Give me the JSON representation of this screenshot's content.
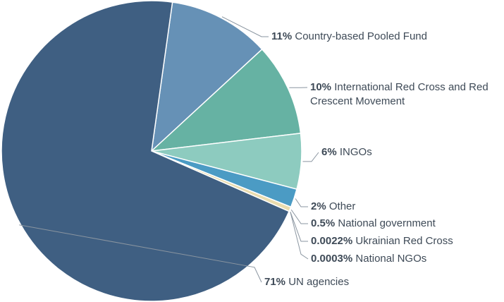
{
  "chart_data": {
    "type": "pie",
    "categories": [
      "Country-based Pooled Fund",
      "International Red Cross and Red Crescent Movement",
      "INGOs",
      "Other",
      "National government",
      "Ukrainian Red Cross",
      "National NGOs",
      "UN agencies"
    ],
    "values": [
      11,
      10,
      6,
      2,
      0.5,
      0.0022,
      0.0003,
      71
    ],
    "value_labels": [
      "11%",
      "10%",
      "6%",
      "2%",
      "0.5%",
      "0.0022%",
      "0.0003%",
      "71%"
    ],
    "colors": [
      "#6691b6",
      "#66b2a3",
      "#8dcbbf",
      "#4b9bc4",
      "#e9dcae",
      "#222222",
      "#888888",
      "#3f5f82"
    ]
  }
}
